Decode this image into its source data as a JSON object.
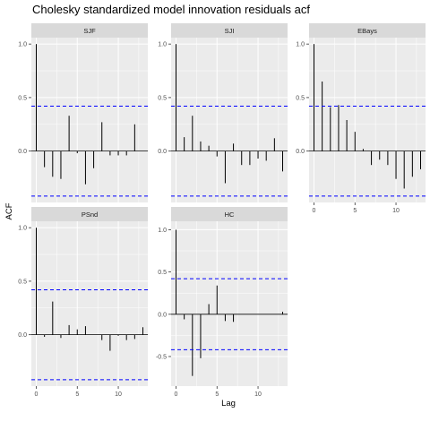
{
  "chart_data": {
    "type": "bar",
    "title": "Cholesky standardized model innovation residuals acf",
    "xlabel": "Lag",
    "ylabel": "ACF",
    "grid": true,
    "colors": {
      "panel_bg": "#ebebeb",
      "strip_bg": "#d9d9d9",
      "grid_major": "#ffffff",
      "bars": "#000000",
      "confidence_band": "#0000ff"
    },
    "panels": [
      {
        "name": "SJF",
        "lags": [
          0,
          1,
          2,
          3,
          4,
          5,
          6,
          7,
          8,
          9,
          10,
          11,
          12,
          13
        ],
        "acf": [
          1.0,
          -0.15,
          -0.24,
          -0.26,
          0.33,
          -0.02,
          -0.31,
          -0.16,
          0.27,
          -0.04,
          -0.04,
          -0.04,
          0.25,
          0.0
        ],
        "ci": 0.42,
        "ylim": [
          -0.48,
          1.06
        ],
        "xlim": [
          -0.6,
          13.6
        ],
        "yticks": [
          0.0,
          0.5,
          1.0
        ],
        "ytick_labels": [
          "0.0",
          "0.5",
          "1.0"
        ],
        "xticks": [],
        "xtick_labels": []
      },
      {
        "name": "SJI",
        "lags": [
          0,
          1,
          2,
          3,
          4,
          5,
          6,
          7,
          8,
          9,
          10,
          11,
          12,
          13
        ],
        "acf": [
          1.0,
          0.13,
          0.33,
          0.09,
          0.05,
          -0.05,
          -0.3,
          0.07,
          -0.13,
          -0.13,
          -0.07,
          -0.09,
          0.12,
          -0.19
        ],
        "ci": 0.42,
        "ylim": [
          -0.48,
          1.06
        ],
        "xlim": [
          -0.6,
          13.6
        ],
        "yticks": [
          0.0,
          0.5,
          1.0
        ],
        "ytick_labels": [
          "0.0",
          "0.5",
          "1.0"
        ],
        "xticks": [],
        "xtick_labels": []
      },
      {
        "name": "EBays",
        "lags": [
          0,
          1,
          2,
          3,
          4,
          5,
          6,
          7,
          8,
          9,
          10,
          11,
          12,
          13
        ],
        "acf": [
          1.0,
          0.65,
          0.41,
          0.43,
          0.29,
          0.18,
          0.02,
          -0.13,
          -0.08,
          -0.13,
          -0.26,
          -0.35,
          -0.24,
          -0.17
        ],
        "ci": 0.42,
        "ylim": [
          -0.48,
          1.06
        ],
        "xlim": [
          -0.6,
          13.6
        ],
        "yticks": [
          0.0,
          0.5,
          1.0
        ],
        "ytick_labels": [
          "0.0",
          "0.5",
          "1.0"
        ],
        "xticks": [
          0,
          5,
          10
        ],
        "xtick_labels": [
          "0",
          "5",
          "10"
        ]
      },
      {
        "name": "PSnd",
        "lags": [
          0,
          1,
          2,
          3,
          4,
          5,
          6,
          7,
          8,
          9,
          10,
          11,
          12,
          13
        ],
        "acf": [
          1.0,
          -0.02,
          0.31,
          -0.03,
          0.09,
          0.05,
          0.08,
          0.0,
          -0.05,
          -0.15,
          -0.01,
          -0.05,
          -0.04,
          0.07
        ],
        "ci": 0.42,
        "ylim": [
          -0.48,
          1.06
        ],
        "xlim": [
          -0.6,
          13.6
        ],
        "yticks": [
          0.0,
          0.5,
          1.0
        ],
        "ytick_labels": [
          "0.0",
          "0.5",
          "1.0"
        ],
        "xticks": [
          0,
          5,
          10
        ],
        "xtick_labels": [
          "0",
          "5",
          "10"
        ]
      },
      {
        "name": "HC",
        "lags": [
          0,
          1,
          2,
          3,
          4,
          5,
          6,
          7,
          8,
          9,
          10,
          11,
          12,
          13
        ],
        "acf": [
          1.0,
          -0.06,
          -0.73,
          -0.52,
          0.12,
          0.34,
          -0.08,
          -0.09,
          0.0,
          0.0,
          0.0,
          0.0,
          0.0,
          0.03
        ],
        "ci": 0.42,
        "ylim": [
          -0.85,
          1.1
        ],
        "xlim": [
          -0.6,
          13.6
        ],
        "yticks": [
          -0.5,
          0.0,
          0.5,
          1.0
        ],
        "ytick_labels": [
          "-0.5",
          "0.0",
          "0.5",
          "1.0"
        ],
        "xticks": [
          0,
          5,
          10
        ],
        "xtick_labels": [
          "0",
          "5",
          "10"
        ]
      }
    ]
  }
}
